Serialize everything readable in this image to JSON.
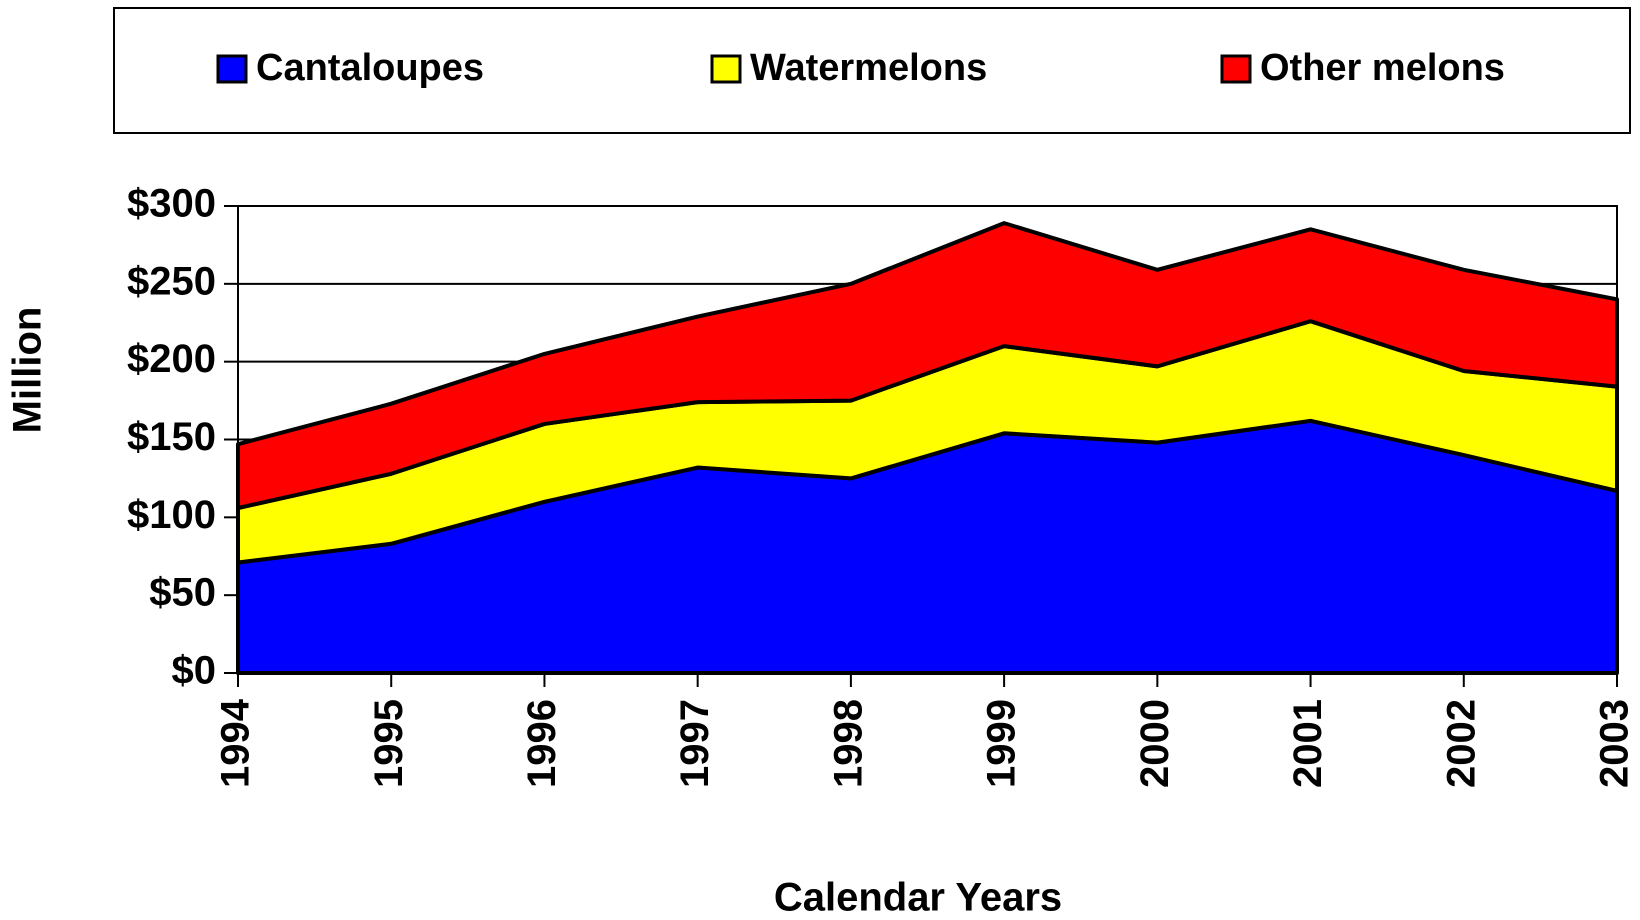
{
  "chart_data": {
    "type": "stacked_area",
    "x_label": "Calendar Years",
    "y_label": "Million",
    "categories": [
      "1994",
      "1995",
      "1996",
      "1997",
      "1998",
      "1999",
      "2000",
      "2001",
      "2002",
      "2003"
    ],
    "series": [
      {
        "name": "Cantaloupes",
        "color": "#0000ff",
        "values": [
          71,
          83,
          110,
          132,
          125,
          154,
          148,
          162,
          140,
          117
        ]
      },
      {
        "name": "Watermelons",
        "color": "#ffff00",
        "values": [
          35,
          45,
          50,
          42,
          50,
          56,
          49,
          64,
          54,
          67
        ]
      },
      {
        "name": "Other melons",
        "color": "#ff0000",
        "values": [
          41,
          45,
          45,
          55,
          75,
          79,
          62,
          59,
          65,
          56
        ]
      }
    ],
    "ylim": [
      0,
      300
    ],
    "yticks": [
      {
        "value": 0,
        "label": "$0"
      },
      {
        "value": 50,
        "label": "$50"
      },
      {
        "value": 100,
        "label": "$100"
      },
      {
        "value": 150,
        "label": "$150"
      },
      {
        "value": 200,
        "label": "$200"
      },
      {
        "value": 250,
        "label": "$250"
      },
      {
        "value": 300,
        "label": "$300"
      }
    ],
    "grid": true,
    "legend": "top"
  }
}
